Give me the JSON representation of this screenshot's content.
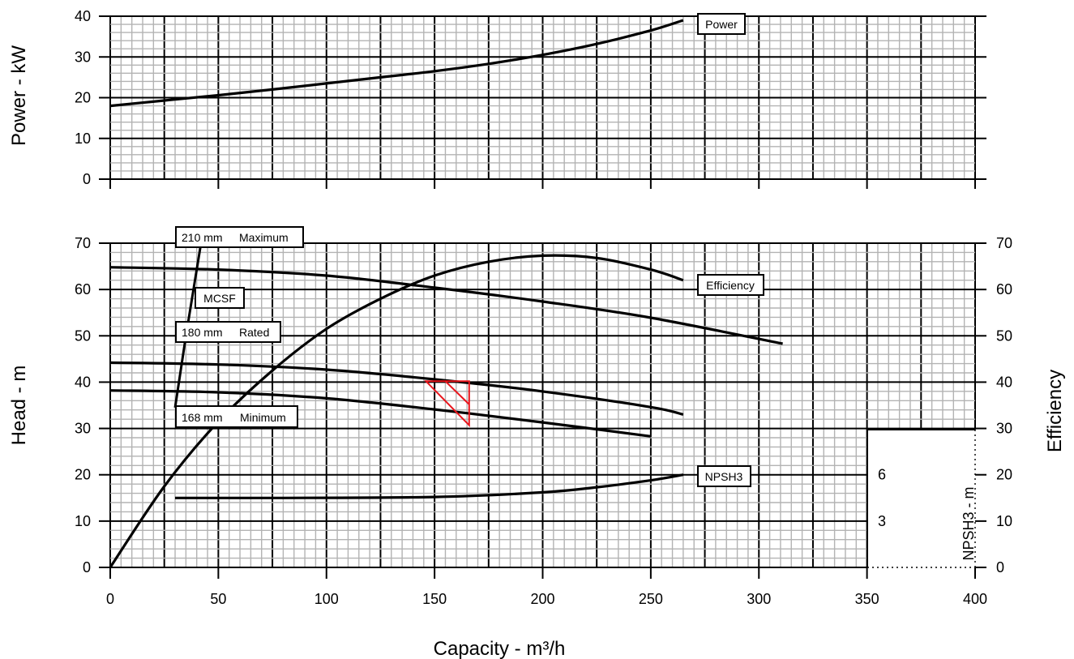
{
  "chart_data": [
    {
      "panel": "power",
      "type": "line",
      "ylabel": "Power - kW",
      "xlim": [
        0,
        400
      ],
      "ylim": [
        0,
        40
      ],
      "y_ticks": [
        "0",
        "10",
        "20",
        "30",
        "40"
      ],
      "grid": true,
      "series": [
        {
          "name": "Power",
          "x": [
            0,
            25,
            50,
            75,
            100,
            125,
            150,
            175,
            200,
            225,
            250,
            265
          ],
          "y": [
            18,
            19.3,
            20.6,
            22.0,
            23.5,
            25.0,
            26.5,
            28.3,
            30.5,
            33.2,
            36.5,
            39
          ]
        }
      ]
    },
    {
      "panel": "head",
      "type": "line",
      "xlabel": "Capacity - m³/h",
      "ylabel": "Head - m",
      "y2label": "Efficiency",
      "y3label": "NPSH3 - m",
      "xlim": [
        0,
        400
      ],
      "ylim": [
        0,
        70
      ],
      "x_ticks": [
        "0",
        "50",
        "100",
        "150",
        "200",
        "250",
        "300",
        "350",
        "400"
      ],
      "y_ticks": [
        "0",
        "10",
        "20",
        "30",
        "40",
        "50",
        "60",
        "70"
      ],
      "y2_ticks": [
        "0",
        "10",
        "20",
        "30",
        "40",
        "50",
        "60",
        "70"
      ],
      "npsh_ticks": [
        "3",
        "6"
      ],
      "grid": true,
      "series": [
        {
          "name": "210 mm Maximum",
          "x": [
            0,
            50,
            100,
            150,
            200,
            250,
            311
          ],
          "y": [
            64.8,
            64.3,
            63.0,
            60.4,
            57.4,
            53.9,
            48.3
          ]
        },
        {
          "name": "180 mm Rated",
          "x": [
            0,
            50,
            100,
            150,
            200,
            250,
            265
          ],
          "y": [
            44.2,
            43.8,
            42.7,
            40.6,
            38.0,
            34.6,
            33.0
          ]
        },
        {
          "name": "168 mm Minimum",
          "x": [
            0,
            50,
            100,
            150,
            200,
            250
          ],
          "y": [
            38.2,
            37.8,
            36.5,
            34.1,
            31.3,
            28.3
          ]
        },
        {
          "name": "Efficiency",
          "x": [
            0,
            25,
            50,
            75,
            100,
            125,
            150,
            175,
            200,
            225,
            250,
            265
          ],
          "y": [
            0,
            17.5,
            31.5,
            42.5,
            51.5,
            58.0,
            63.0,
            66.0,
            67.3,
            66.8,
            64.3,
            62.0
          ]
        },
        {
          "name": "NPSH3",
          "x": [
            30,
            75,
            150,
            200,
            225,
            250,
            265
          ],
          "y": [
            15,
            15,
            15.2,
            16.2,
            17.3,
            18.8,
            20
          ]
        },
        {
          "name": "MCSF",
          "x": [
            42,
            35,
            30
          ],
          "y": [
            70,
            50,
            34.5
          ]
        }
      ],
      "operating_region": {
        "color": "#e8141b",
        "points": [
          [
            146,
            40.2
          ],
          [
            166,
            40.2
          ],
          [
            166,
            30.7
          ]
        ],
        "inner_line": [
          [
            155,
            40.2
          ],
          [
            166,
            35.2
          ]
        ]
      }
    }
  ],
  "labels": {
    "power": "Power",
    "maximum_size": "210 mm",
    "maximum_text": "Maximum",
    "mcsf": "MCSF",
    "rated_size": "180 mm",
    "rated_text": "Rated",
    "minimum_size": "168 mm",
    "minimum_text": "Minimum",
    "efficiency": "Efficiency",
    "npsh3": "NPSH3"
  }
}
